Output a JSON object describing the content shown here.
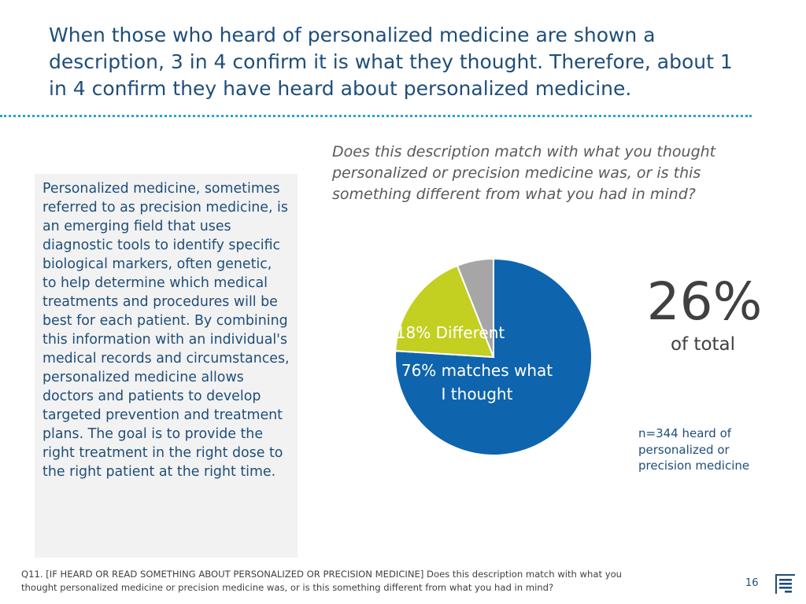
{
  "header": {
    "title": "When those who heard of personalized medicine are shown a description, 3 in 4 confirm it is what they thought. Therefore, about 1 in 4 confirm they have heard about personalized medicine."
  },
  "definition": {
    "text": "Personalized medicine, sometimes referred to as precision medicine, is an emerging field that uses diagnostic tools to identify specific biological markers, often genetic, to help determine which medical treatments and procedures will be best for each patient. By combining this information with an individual's medical records and circumstances, personalized medicine allows doctors and patients to develop targeted prevention and treatment plans. The goal is to provide the right treatment in the right dose to the right patient at the right time."
  },
  "chart_data": {
    "type": "pie",
    "title": "Does this description match with what you thought personalized or precision medicine was, or is this something different from what you had in mind?",
    "slices": [
      {
        "label_lines": [
          "76% matches what",
          "I thought"
        ],
        "value": 76,
        "color": "#0e64ad"
      },
      {
        "label_lines": [
          "18% Different"
        ],
        "value": 18,
        "color": "#c3cf21"
      },
      {
        "label_lines": [],
        "value": 6,
        "color": "#a6a6a6"
      }
    ]
  },
  "callout": {
    "percent": "26%",
    "caption": "of total",
    "sample": "n=344 heard of personalized or precision medicine"
  },
  "footer": {
    "note": "Q11. [IF HEARD OR READ SOMETHING ABOUT PERSONALIZED OR PRECISION MEDICINE] Does this description match with what you thought personalized medicine or precision medicine was, or is this something different from what you had in mind?",
    "page_number": "16",
    "logo_icon": "company-logo-icon"
  }
}
